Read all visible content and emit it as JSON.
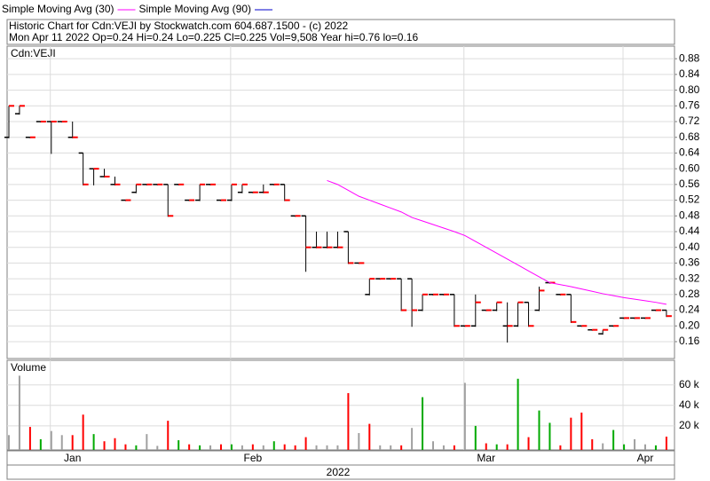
{
  "chart_data": {
    "type": "ohlc",
    "header": [
      "Historic Chart for Cdn:VEJI by Stockwatch.com 604.687.1500 - (c) 2022",
      "Mon Apr 11 2022  Op=0.24 Hi=0.24 Lo=0.225 Cl=0.225 Vol=9,508 Year hi=0.76 lo=0.16"
    ],
    "symbol": "Cdn:VEJI",
    "volume_title": "Volume",
    "year": "2022",
    "indicators": [
      {
        "name": "Simple Moving Avg (30)",
        "color": "#ff00ff",
        "values": [
          null,
          null,
          null,
          null,
          null,
          null,
          null,
          null,
          null,
          null,
          null,
          null,
          null,
          null,
          null,
          null,
          null,
          null,
          null,
          null,
          null,
          null,
          null,
          null,
          null,
          null,
          null,
          null,
          null,
          null,
          0.57,
          0.56,
          0.545,
          0.53,
          0.52,
          0.51,
          0.5,
          0.49,
          0.476,
          0.467,
          0.458,
          0.449,
          0.44,
          0.43,
          0.415,
          0.4,
          0.385,
          0.37,
          0.355,
          0.34,
          0.325,
          0.31,
          0.305,
          0.3,
          0.294,
          0.288,
          0.282,
          0.277,
          0.272,
          0.268,
          0.264,
          0.26,
          0.255
        ]
      },
      {
        "name": "Simple Moving Avg (90)",
        "color": "#0000cc"
      }
    ],
    "ohlc": [
      [
        0.68,
        0.76,
        0.68,
        0.76
      ],
      [
        0.74,
        0.76,
        0.74,
        0.76
      ],
      [
        0.68,
        0.68,
        0.68,
        0.68
      ],
      [
        0.72,
        0.72,
        0.72,
        0.72
      ],
      [
        0.72,
        0.72,
        0.64,
        0.72
      ],
      [
        0.72,
        0.72,
        0.72,
        0.72
      ],
      [
        0.68,
        0.72,
        0.68,
        0.68
      ],
      [
        0.64,
        0.64,
        0.56,
        0.56
      ],
      [
        0.6,
        0.6,
        0.56,
        0.6
      ],
      [
        0.58,
        0.6,
        0.58,
        0.58
      ],
      [
        0.56,
        0.58,
        0.56,
        0.56
      ],
      [
        0.52,
        0.52,
        0.52,
        0.52
      ],
      [
        0.54,
        0.56,
        0.54,
        0.56
      ],
      [
        0.56,
        0.56,
        0.56,
        0.56
      ],
      [
        0.56,
        0.56,
        0.56,
        0.56
      ],
      [
        0.56,
        0.56,
        0.48,
        0.48
      ],
      [
        0.56,
        0.56,
        0.56,
        0.56
      ],
      [
        0.52,
        0.52,
        0.52,
        0.52
      ],
      [
        0.52,
        0.56,
        0.52,
        0.56
      ],
      [
        0.56,
        0.56,
        0.56,
        0.56
      ],
      [
        0.52,
        0.52,
        0.52,
        0.52
      ],
      [
        0.52,
        0.56,
        0.52,
        0.56
      ],
      [
        0.54,
        0.56,
        0.54,
        0.56
      ],
      [
        0.54,
        0.54,
        0.54,
        0.54
      ],
      [
        0.54,
        0.56,
        0.54,
        0.54
      ],
      [
        0.56,
        0.56,
        0.56,
        0.56
      ],
      [
        0.56,
        0.56,
        0.52,
        0.52
      ],
      [
        0.48,
        0.48,
        0.48,
        0.48
      ],
      [
        0.48,
        0.48,
        0.34,
        0.4
      ],
      [
        0.4,
        0.44,
        0.4,
        0.4
      ],
      [
        0.4,
        0.44,
        0.4,
        0.4
      ],
      [
        0.4,
        0.44,
        0.4,
        0.4
      ],
      [
        0.44,
        0.44,
        0.36,
        0.36
      ],
      [
        0.36,
        0.36,
        0.36,
        0.36
      ],
      [
        0.28,
        0.32,
        0.28,
        0.32
      ],
      [
        0.32,
        0.32,
        0.32,
        0.32
      ],
      [
        0.32,
        0.32,
        0.32,
        0.32
      ],
      [
        0.32,
        0.32,
        0.24,
        0.24
      ],
      [
        0.32,
        0.32,
        0.2,
        0.24
      ],
      [
        0.24,
        0.28,
        0.24,
        0.28
      ],
      [
        0.28,
        0.28,
        0.28,
        0.28
      ],
      [
        0.28,
        0.28,
        0.28,
        0.28
      ],
      [
        0.28,
        0.28,
        0.2,
        0.2
      ],
      [
        0.2,
        0.2,
        0.2,
        0.2
      ],
      [
        0.2,
        0.28,
        0.2,
        0.26
      ],
      [
        0.24,
        0.24,
        0.24,
        0.24
      ],
      [
        0.24,
        0.26,
        0.24,
        0.26
      ],
      [
        0.2,
        0.26,
        0.16,
        0.2
      ],
      [
        0.2,
        0.26,
        0.2,
        0.26
      ],
      [
        0.26,
        0.26,
        0.2,
        0.2
      ],
      [
        0.24,
        0.3,
        0.24,
        0.29
      ],
      [
        0.31,
        0.31,
        0.31,
        0.31
      ],
      [
        0.28,
        0.28,
        0.28,
        0.28
      ],
      [
        0.28,
        0.28,
        0.21,
        0.21
      ],
      [
        0.2,
        0.2,
        0.2,
        0.2
      ],
      [
        0.19,
        0.19,
        0.19,
        0.19
      ],
      [
        0.18,
        0.19,
        0.18,
        0.19
      ],
      [
        0.2,
        0.2,
        0.2,
        0.2
      ],
      [
        0.22,
        0.22,
        0.22,
        0.22
      ],
      [
        0.22,
        0.22,
        0.22,
        0.22
      ],
      [
        0.22,
        0.22,
        0.22,
        0.22
      ],
      [
        0.24,
        0.24,
        0.24,
        0.24
      ],
      [
        0.24,
        0.24,
        0.225,
        0.225
      ]
    ],
    "volume": [
      11000,
      69000,
      19000,
      7000,
      15000,
      11000,
      11000,
      31000,
      12000,
      5000,
      8000,
      2000,
      1000,
      12000,
      500,
      25000,
      6000,
      2000,
      1000,
      1000,
      2000,
      2000,
      1000,
      2000,
      1000,
      5000,
      2000,
      1000,
      9000,
      1000,
      1000,
      1000,
      52000,
      13000,
      22000,
      1000,
      1000,
      1000,
      18000,
      48000,
      5000,
      1000,
      1000,
      62000,
      20000,
      3000,
      2000,
      2000,
      66000,
      9000,
      35000,
      23000,
      1000,
      28000,
      33000,
      7000,
      3000,
      16000,
      2000,
      7000,
      2000,
      1000,
      9508
    ],
    "ylim": [
      0.117,
      0.912
    ],
    "yticks": [
      0.16,
      {
        "value": 0.2,
        "label": "0.20"
      },
      0.24,
      0.28,
      0.32,
      0.36,
      {
        "value": 0.4,
        "label": "0.40"
      },
      0.44,
      0.48,
      0.52,
      0.56,
      {
        "value": 0.6,
        "label": "0.60"
      },
      0.64,
      0.68,
      0.72,
      0.76,
      {
        "value": 0.8,
        "label": "0.80"
      },
      0.84,
      0.88
    ],
    "volume_ylim": [
      0,
      84000
    ],
    "volume_yticks": [
      {
        "value": 20000,
        "label": "20 k"
      },
      {
        "value": 40000,
        "label": "40 k"
      },
      {
        "value": 60000,
        "label": "60 k"
      }
    ],
    "xticks": [
      {
        "value": 6,
        "label": "Jan"
      },
      {
        "value": 23,
        "label": "Feb"
      },
      {
        "value": 45,
        "label": "Mar"
      },
      {
        "value": 60,
        "label": "Apr"
      }
    ],
    "grid": true,
    "up_color": "#00aa00",
    "down_color": "#ff0000",
    "flat_color": "#a0a0a0",
    "close_color": "#ff0000"
  }
}
